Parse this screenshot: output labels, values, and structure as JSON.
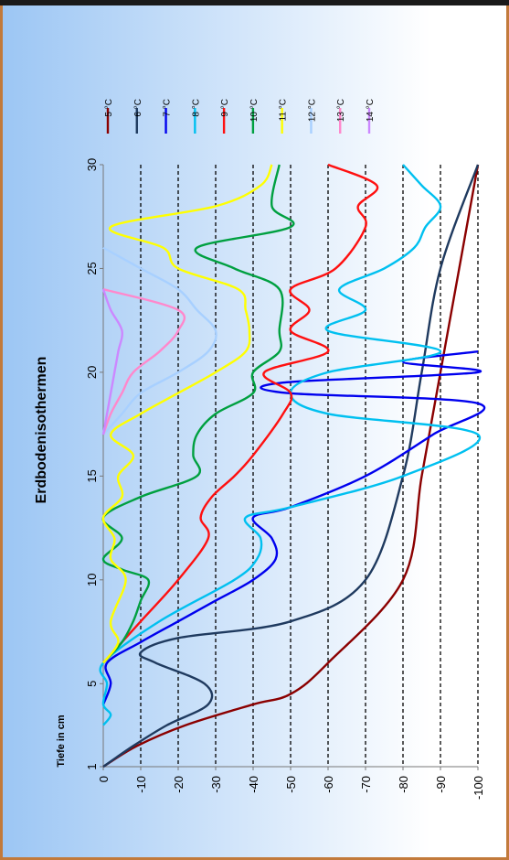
{
  "chart_data": {
    "type": "line",
    "title": "Erdbodenisothermen",
    "xlabel": "Tiefe in cm",
    "ylabel": "",
    "x_ticks": [
      "1",
      "5",
      "10",
      "15",
      "20",
      "25",
      "30"
    ],
    "y_ticks": [
      "0",
      "-10",
      "-20",
      "-30",
      "-40",
      "-50",
      "-60",
      "-70",
      "-80",
      "-90",
      "-100"
    ],
    "xlim": [
      1,
      30
    ],
    "ylim": [
      -100,
      0
    ],
    "grid": "dashed horizontal",
    "legend_position": "top",
    "colors": {
      "s5": "#8b0000",
      "s6": "#1f3a5f",
      "s7": "#0000ee",
      "s8": "#00c0f0",
      "s9": "#ff1010",
      "s10": "#00a040",
      "s11": "#ffff00",
      "s12": "#a8d0ff",
      "s13": "#ff88cc",
      "s14": "#cc88ff"
    },
    "series": [
      {
        "name": "5 °C",
        "color": "#8b0000",
        "x": [
          1,
          2,
          3,
          4,
          4.5,
          6,
          10,
          15,
          20,
          25,
          30
        ],
        "y": [
          0,
          -9,
          -22,
          -40,
          -50,
          -60,
          -80,
          -85,
          -90,
          -95,
          -100
        ]
      },
      {
        "name": "6 °C",
        "color": "#1f3a5f",
        "x": [
          1,
          2,
          3,
          4,
          5,
          6,
          6.5,
          7.2,
          8,
          10,
          15,
          20,
          25,
          30
        ],
        "y": [
          0,
          -8,
          -17,
          -28,
          -27,
          -14,
          -10,
          -20,
          -50,
          -70,
          -80,
          -85,
          -90,
          -100
        ]
      },
      {
        "name": "7 °C",
        "color": "#0000ee",
        "x": [
          4,
          5,
          6,
          7,
          8,
          9,
          10,
          11,
          12,
          13,
          13.5,
          15,
          17,
          18.5,
          19,
          19.5,
          20,
          20.5,
          21
        ],
        "y": [
          0,
          -2,
          -1,
          -10,
          -20,
          -30,
          -40,
          -46,
          -45,
          -40,
          -50,
          -70,
          -88,
          -100,
          -49,
          -48,
          -100,
          -80,
          -100
        ]
      },
      {
        "name": "8 °C",
        "color": "#00c0f0",
        "x": [
          3,
          3.5,
          4,
          5,
          6,
          8,
          10,
          11,
          12,
          13,
          13.5,
          15,
          17,
          18,
          19,
          20,
          21,
          22,
          23,
          24,
          25,
          26,
          27,
          28,
          29,
          30
        ],
        "y": [
          0,
          -2,
          0,
          -1,
          0,
          -15,
          -35,
          -41,
          -42,
          -38,
          -50,
          -80,
          -100,
          -60,
          -50,
          -60,
          -90,
          -60,
          -70,
          -63,
          -75,
          -83,
          -86,
          -90,
          -85,
          -80
        ]
      },
      {
        "name": "9 °C",
        "color": "#ff1010",
        "x": [
          6,
          8,
          10,
          12,
          13,
          14,
          15,
          16,
          18,
          19,
          20,
          21,
          22,
          23,
          24,
          25,
          27,
          28,
          29,
          30
        ],
        "y": [
          0,
          -10,
          -20,
          -28,
          -26,
          -29,
          -35,
          -40,
          -48,
          -50,
          -43,
          -60,
          -50,
          -55,
          -50,
          -62,
          -70,
          -68,
          -73,
          -60
        ]
      },
      {
        "name": "10 °C",
        "color": "#00a040",
        "x": [
          6,
          7,
          8,
          9,
          10,
          10.5,
          11,
          12,
          13,
          14,
          15,
          16,
          17,
          18,
          19,
          20,
          21,
          22,
          24,
          25,
          26,
          27,
          28,
          30
        ],
        "y": [
          0,
          -5,
          -8,
          -10,
          -12,
          -5,
          0,
          -5,
          0,
          -10,
          -25,
          -24,
          -25,
          -30,
          -40,
          -40,
          -47,
          -47,
          -47,
          -35,
          -25,
          -50,
          -45,
          -47
        ]
      },
      {
        "name": "11 °C",
        "color": "#ffff00",
        "x": [
          6,
          7,
          8,
          10,
          11,
          12,
          13,
          14,
          15,
          16,
          17,
          18,
          19,
          20,
          21,
          22,
          23,
          24,
          25,
          26,
          27,
          28,
          29,
          30
        ],
        "y": [
          0,
          -4,
          -2,
          -6,
          -2,
          -3,
          0,
          -5,
          -4,
          -8,
          -2,
          -10,
          -20,
          -30,
          -38,
          -39,
          -38,
          -36,
          -20,
          -16,
          -2,
          -30,
          -42,
          -45
        ]
      },
      {
        "name": "12 °C",
        "color": "#a8d0ff",
        "x": [
          17,
          18,
          19,
          20,
          21,
          22,
          23,
          24,
          25,
          26
        ],
        "y": [
          0,
          -5,
          -10,
          -20,
          -28,
          -30,
          -25,
          -20,
          -10,
          0
        ]
      },
      {
        "name": "13 °C",
        "color": "#ff88cc",
        "x": [
          17,
          18,
          19,
          20,
          21,
          22,
          23,
          24
        ],
        "y": [
          0,
          -2,
          -5,
          -8,
          -15,
          -20,
          -20,
          0
        ]
      },
      {
        "name": "14 °C",
        "color": "#cc88ff",
        "x": [
          17,
          18,
          19,
          20,
          21,
          22,
          23,
          24
        ],
        "y": [
          0,
          -1,
          -2,
          -3,
          -4,
          -5,
          -2,
          0
        ]
      }
    ]
  }
}
